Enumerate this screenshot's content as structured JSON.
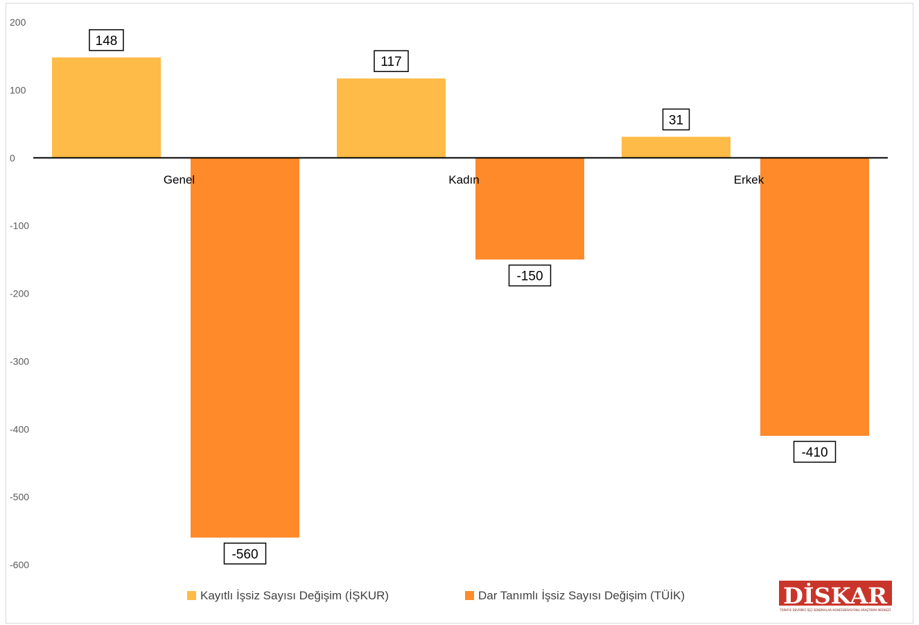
{
  "chart_data": {
    "type": "bar",
    "categories": [
      "Genel",
      "Kadın",
      "Erkek"
    ],
    "series": [
      {
        "name": "Kayıtlı İşsiz Sayısı Değişim (İŞKUR)",
        "values": [
          148,
          117,
          31
        ],
        "color": "#FFBB47"
      },
      {
        "name": "Dar Tanımlı İşsiz Sayısı Değişim (TÜİK)",
        "values": [
          -560,
          -150,
          -410
        ],
        "color": "#FF8A2A"
      }
    ],
    "ylim": [
      -600,
      200
    ],
    "yticks": [
      200,
      100,
      0,
      -100,
      -200,
      -300,
      -400,
      -500,
      -600
    ],
    "data_labels": true,
    "legend_position": "bottom",
    "title": "",
    "xlabel": "",
    "ylabel": ""
  },
  "logo": {
    "text": "DİSKAR",
    "tagline": "TÜRKİYE DEVRİMCİ İŞÇİ SENDİKALARI KONFEDERASYONU ARAŞTIRMA MERKEZİ"
  }
}
